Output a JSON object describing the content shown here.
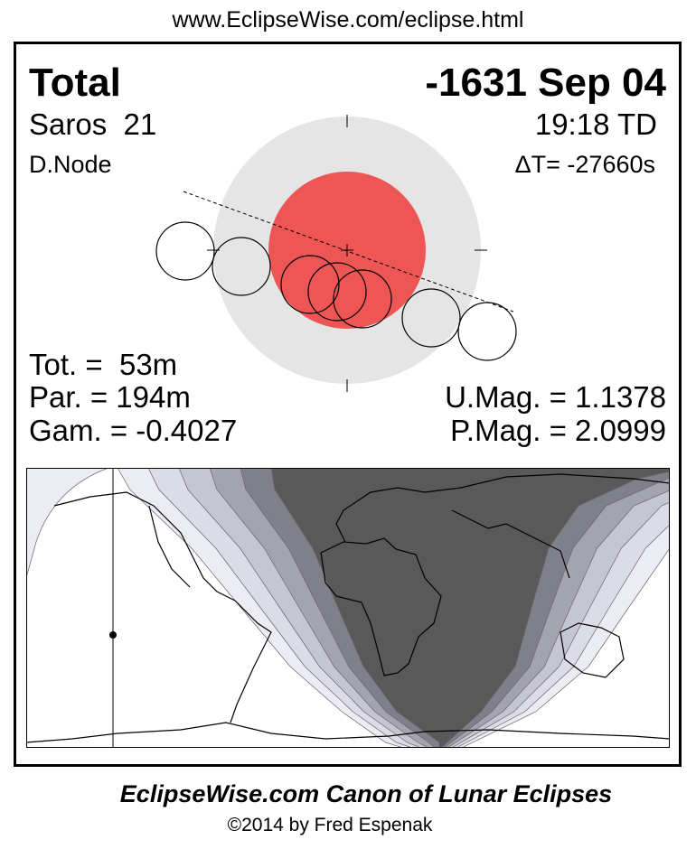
{
  "header": {
    "url": "www.EclipseWise.com/eclipse.html"
  },
  "eclipse": {
    "type": "Total",
    "date": "-1631 Sep 04",
    "saros": "Saros  21",
    "time": "19:18 TD",
    "node": "D.Node",
    "delta_t": "ΔT= -27660s",
    "totality": "Tot. =  53m",
    "partial": "Par. = 194m",
    "gamma": "Gam. = -0.4027",
    "umbral_mag": "U.Mag. = 1.1378",
    "penumbral_mag": "P.Mag. = 2.0999"
  },
  "colors": {
    "umbra": "#ee5656",
    "penumbra": "#e5e5e5",
    "map_total": "#595959",
    "map_bands": [
      "#80808c",
      "#a4a4b1",
      "#c6c6d3",
      "#dcdce8",
      "#ececf5"
    ]
  },
  "footer": {
    "title": "EclipseWise.com Canon of Lunar Eclipses",
    "copyright": "©2014 by Fred Espenak"
  }
}
